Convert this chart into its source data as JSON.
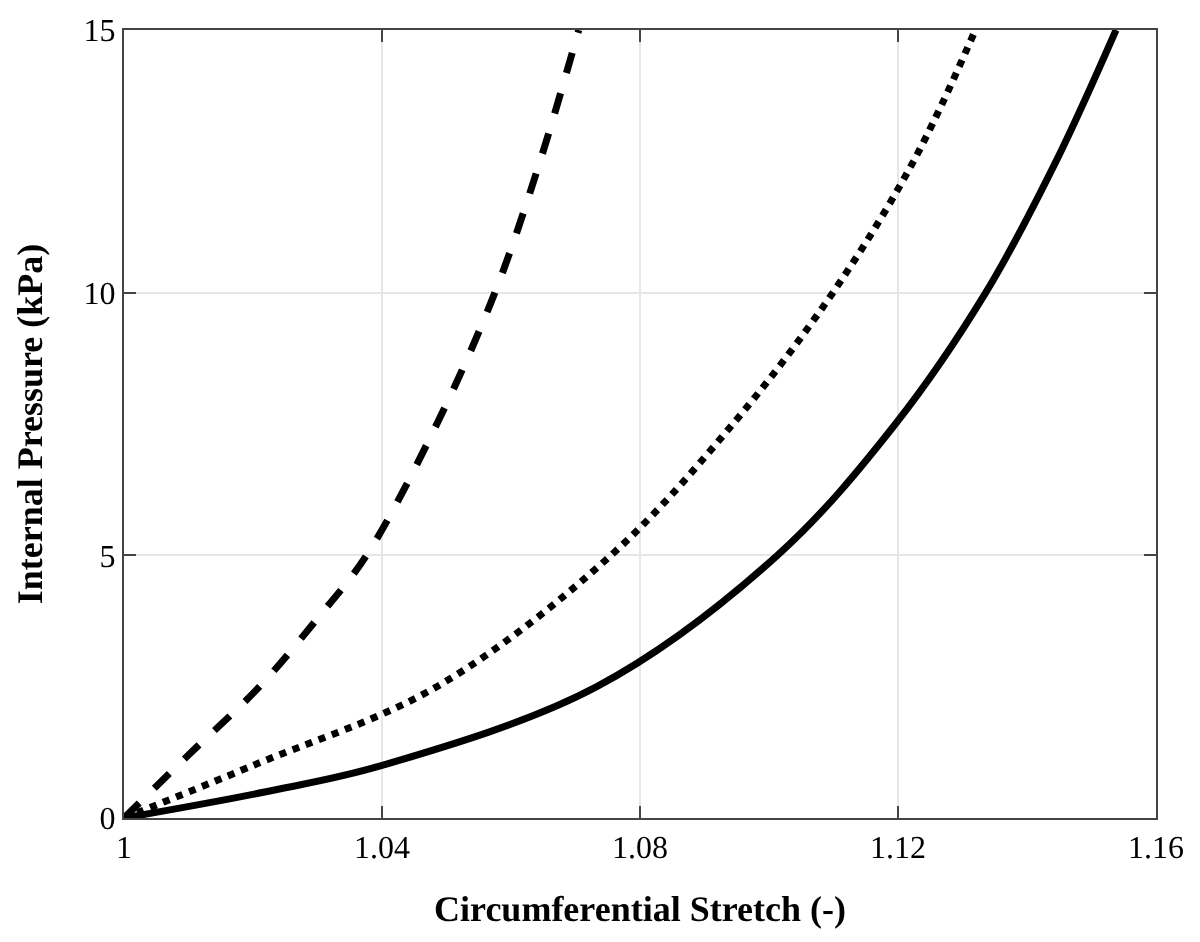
{
  "chart_data": {
    "type": "line",
    "xlabel": "Circumferential Stretch (-)",
    "ylabel": "Internal Pressure (kPa)",
    "xlim": [
      1,
      1.16
    ],
    "xticks": [
      1,
      1.04,
      1.08,
      1.12,
      1.16
    ],
    "ylim": [
      0,
      15
    ],
    "yticks": [
      0,
      5,
      10,
      15
    ],
    "grid": true,
    "series": [
      {
        "color": "#000000",
        "line_style": "dashed",
        "x": [
          1,
          1.01,
          1.021,
          1.03,
          1.0376,
          1.0485,
          1.0575,
          1.0645,
          1.0705
        ],
        "values": [
          0,
          1.2,
          2.5,
          3.8,
          5,
          7.5,
          10,
          12.5,
          15
        ]
      },
      {
        "color": "#000000",
        "line_style": "dotted",
        "x": [
          1,
          1.02,
          1.0485,
          1.0755,
          1.0944,
          1.1099,
          1.1224,
          1.132
        ],
        "values": [
          0,
          1,
          2.5,
          5,
          7.5,
          10,
          12.5,
          15
        ]
      },
      {
        "color": "#000000",
        "line_style": "solid",
        "x": [
          1,
          1.022,
          1.04,
          1.0733,
          1.1013,
          1.1196,
          1.1336,
          1.1445,
          1.1538
        ],
        "values": [
          0,
          0.5,
          1,
          2.5,
          5,
          7.5,
          10,
          12.5,
          15
        ]
      }
    ]
  }
}
